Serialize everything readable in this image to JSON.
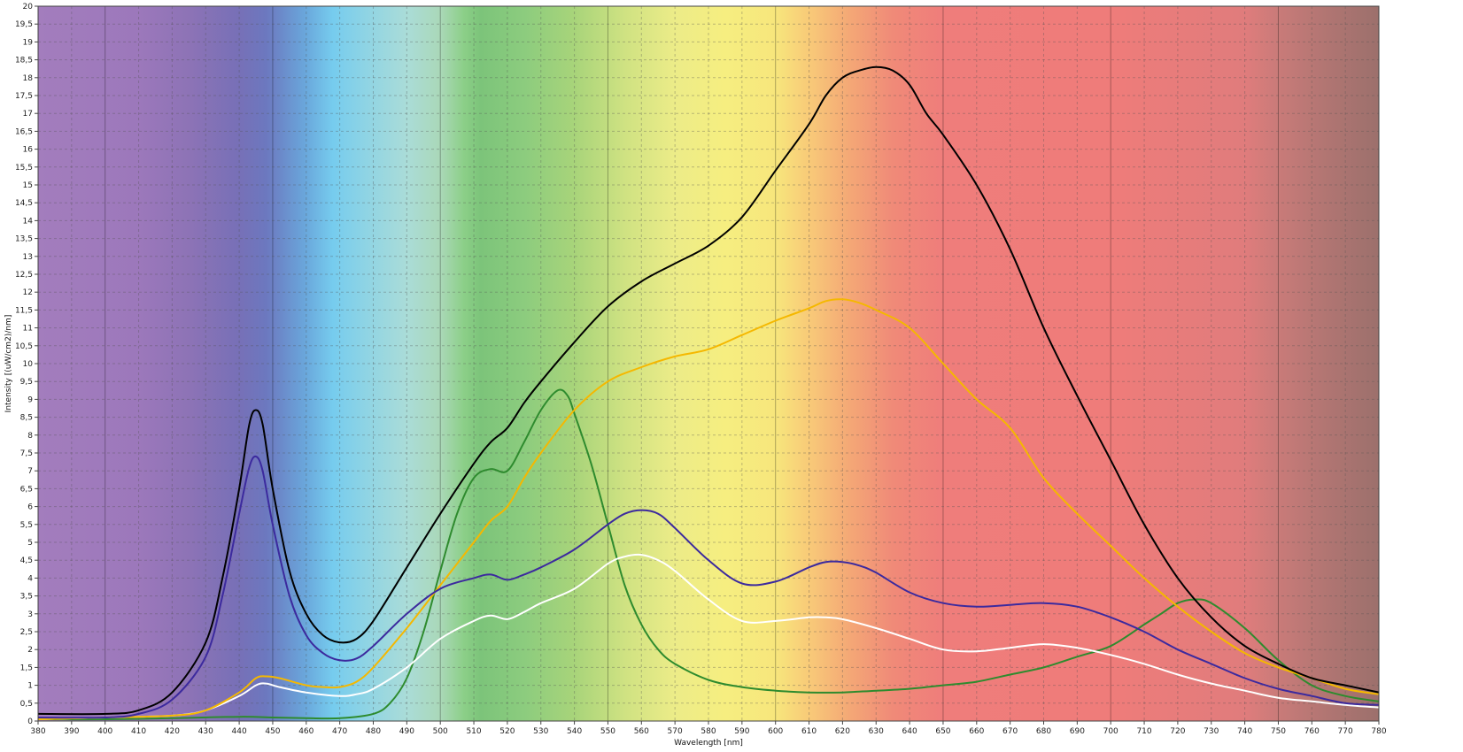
{
  "chart_data": {
    "type": "line",
    "xlabel": "Wavelength [nm]",
    "ylabel": "Intensity [(uW/cm2)/nm]",
    "xlim": [
      380,
      780
    ],
    "ylim": [
      0,
      20
    ],
    "x_ticks": [
      "380",
      "390",
      "400",
      "410",
      "420",
      "430",
      "440",
      "450",
      "460",
      "470",
      "480",
      "490",
      "500",
      "510",
      "520",
      "530",
      "540",
      "550",
      "560",
      "570",
      "580",
      "590",
      "600",
      "610",
      "620",
      "630",
      "640",
      "650",
      "660",
      "670",
      "680",
      "690",
      "700",
      "710",
      "720",
      "730",
      "740",
      "750",
      "760",
      "770",
      "780"
    ],
    "y_ticks": [
      "0",
      "0,5",
      "1",
      "1,5",
      "2",
      "2,5",
      "3",
      "3,5",
      "4",
      "4,5",
      "5",
      "5,5",
      "6",
      "6,5",
      "7",
      "7,5",
      "8",
      "8,5",
      "9",
      "9,5",
      "10",
      "10,5",
      "11",
      "11,5",
      "12",
      "12,5",
      "13",
      "13,5",
      "14",
      "14,5",
      "15",
      "15,5",
      "16",
      "16,5",
      "17",
      "17,5",
      "18",
      "18,5",
      "19",
      "19,5",
      "20"
    ],
    "grid": true,
    "background": "visible spectrum gradient",
    "series": [
      {
        "color": "#000000",
        "x": [
          380,
          400,
          410,
          420,
          430,
          435,
          440,
          443,
          445,
          447,
          450,
          455,
          460,
          465,
          470,
          475,
          480,
          490,
          500,
          510,
          515,
          520,
          525,
          530,
          540,
          550,
          560,
          570,
          580,
          590,
          600,
          610,
          615,
          620,
          625,
          630,
          635,
          640,
          645,
          650,
          660,
          670,
          680,
          690,
          700,
          710,
          720,
          730,
          740,
          750,
          760,
          770,
          780
        ],
        "y": [
          0.2,
          0.2,
          0.3,
          0.8,
          2.2,
          4.0,
          6.5,
          8.3,
          8.7,
          8.3,
          6.5,
          4.2,
          3.0,
          2.4,
          2.2,
          2.3,
          2.8,
          4.3,
          5.8,
          7.2,
          7.8,
          8.2,
          8.9,
          9.5,
          10.6,
          11.6,
          12.3,
          12.8,
          13.3,
          14.1,
          15.4,
          16.7,
          17.5,
          18.0,
          18.2,
          18.3,
          18.2,
          17.8,
          17.0,
          16.4,
          15.0,
          13.2,
          11.0,
          9.1,
          7.3,
          5.5,
          4.0,
          2.9,
          2.1,
          1.6,
          1.2,
          1.0,
          0.8
        ]
      },
      {
        "color": "#3c2a9e",
        "x": [
          380,
          400,
          410,
          420,
          430,
          435,
          440,
          443,
          445,
          447,
          450,
          455,
          460,
          465,
          470,
          475,
          480,
          490,
          500,
          510,
          515,
          520,
          525,
          530,
          540,
          550,
          555,
          560,
          565,
          570,
          580,
          590,
          600,
          610,
          615,
          620,
          625,
          630,
          640,
          650,
          660,
          670,
          680,
          690,
          700,
          710,
          720,
          730,
          740,
          750,
          760,
          770,
          780
        ],
        "y": [
          0.1,
          0.1,
          0.2,
          0.6,
          1.8,
          3.5,
          5.8,
          7.1,
          7.4,
          7.0,
          5.5,
          3.5,
          2.4,
          1.9,
          1.7,
          1.75,
          2.1,
          3.0,
          3.7,
          4.0,
          4.1,
          3.95,
          4.1,
          4.3,
          4.8,
          5.5,
          5.8,
          5.9,
          5.8,
          5.4,
          4.5,
          3.85,
          3.9,
          4.3,
          4.45,
          4.45,
          4.35,
          4.15,
          3.6,
          3.3,
          3.2,
          3.25,
          3.3,
          3.2,
          2.9,
          2.5,
          2.0,
          1.6,
          1.2,
          0.9,
          0.7,
          0.5,
          0.45
        ]
      },
      {
        "color": "#f5b800",
        "x": [
          380,
          400,
          420,
          430,
          440,
          445,
          448,
          452,
          460,
          465,
          470,
          475,
          480,
          490,
          500,
          510,
          515,
          520,
          525,
          530,
          540,
          550,
          560,
          570,
          580,
          590,
          600,
          610,
          615,
          620,
          625,
          630,
          640,
          650,
          660,
          670,
          680,
          690,
          700,
          710,
          720,
          730,
          740,
          750,
          760,
          770,
          780
        ],
        "y": [
          0.05,
          0.1,
          0.15,
          0.3,
          0.8,
          1.2,
          1.25,
          1.2,
          1.0,
          0.95,
          0.95,
          1.1,
          1.5,
          2.6,
          3.8,
          5.0,
          5.6,
          6.0,
          6.8,
          7.5,
          8.7,
          9.5,
          9.9,
          10.2,
          10.4,
          10.8,
          11.2,
          11.55,
          11.75,
          11.8,
          11.7,
          11.5,
          11.0,
          10.0,
          9.0,
          8.2,
          6.8,
          5.8,
          4.9,
          4.0,
          3.2,
          2.5,
          1.9,
          1.5,
          1.2,
          0.9,
          0.75
        ]
      },
      {
        "color": "#ffffff",
        "x": [
          380,
          400,
          420,
          430,
          440,
          445,
          448,
          452,
          460,
          470,
          475,
          480,
          490,
          500,
          510,
          515,
          520,
          525,
          530,
          540,
          550,
          555,
          560,
          565,
          570,
          580,
          590,
          600,
          610,
          615,
          620,
          630,
          640,
          650,
          660,
          670,
          680,
          690,
          700,
          710,
          720,
          730,
          740,
          750,
          760,
          770,
          780
        ],
        "y": [
          0.05,
          0.1,
          0.15,
          0.3,
          0.7,
          1.0,
          1.05,
          0.95,
          0.8,
          0.7,
          0.75,
          0.9,
          1.5,
          2.3,
          2.8,
          2.95,
          2.85,
          3.05,
          3.3,
          3.7,
          4.4,
          4.6,
          4.65,
          4.5,
          4.2,
          3.4,
          2.8,
          2.8,
          2.9,
          2.9,
          2.85,
          2.6,
          2.3,
          2.0,
          1.95,
          2.05,
          2.15,
          2.05,
          1.85,
          1.6,
          1.3,
          1.05,
          0.85,
          0.65,
          0.55,
          0.45,
          0.38
        ]
      },
      {
        "color": "#2e8b2e",
        "x": [
          380,
          400,
          420,
          440,
          450,
          460,
          470,
          480,
          485,
          490,
          495,
          500,
          505,
          510,
          515,
          520,
          525,
          530,
          535,
          538,
          540,
          545,
          550,
          555,
          560,
          565,
          570,
          580,
          590,
          600,
          610,
          620,
          630,
          640,
          650,
          660,
          670,
          680,
          690,
          700,
          710,
          715,
          720,
          725,
          730,
          740,
          750,
          760,
          770,
          780
        ],
        "y": [
          0.05,
          0.05,
          0.08,
          0.12,
          0.1,
          0.08,
          0.08,
          0.2,
          0.5,
          1.2,
          2.5,
          4.2,
          5.8,
          6.8,
          7.05,
          7.0,
          7.8,
          8.7,
          9.25,
          9.1,
          8.6,
          7.2,
          5.5,
          3.8,
          2.7,
          2.0,
          1.6,
          1.15,
          0.95,
          0.85,
          0.8,
          0.8,
          0.85,
          0.9,
          1.0,
          1.1,
          1.3,
          1.5,
          1.8,
          2.1,
          2.7,
          3.0,
          3.3,
          3.4,
          3.3,
          2.6,
          1.7,
          1.0,
          0.7,
          0.55
        ]
      }
    ]
  }
}
